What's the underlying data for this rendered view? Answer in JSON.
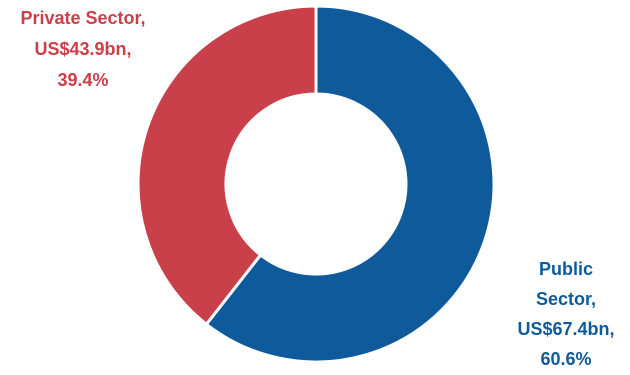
{
  "chart_data": {
    "type": "pie",
    "variant": "donut",
    "title": "",
    "slices": [
      {
        "name": "Public Sector",
        "value": 67.4,
        "percent": 60.6,
        "color": "#0F5A9B",
        "label_lines": [
          "Public",
          "Sector,",
          "US$67.4bn,",
          "60.6%"
        ]
      },
      {
        "name": "Private Sector",
        "value": 43.9,
        "percent": 39.4,
        "color": "#C9404A",
        "label_lines": [
          "Private Sector,",
          "US$43.9bn,",
          "39.4%"
        ]
      }
    ],
    "value_unit": "US$ bn",
    "start_angle": "12 o'clock",
    "direction": "clockwise",
    "label_placement": {
      "Public Sector": "bottom-right",
      "Private Sector": "top-left"
    }
  }
}
